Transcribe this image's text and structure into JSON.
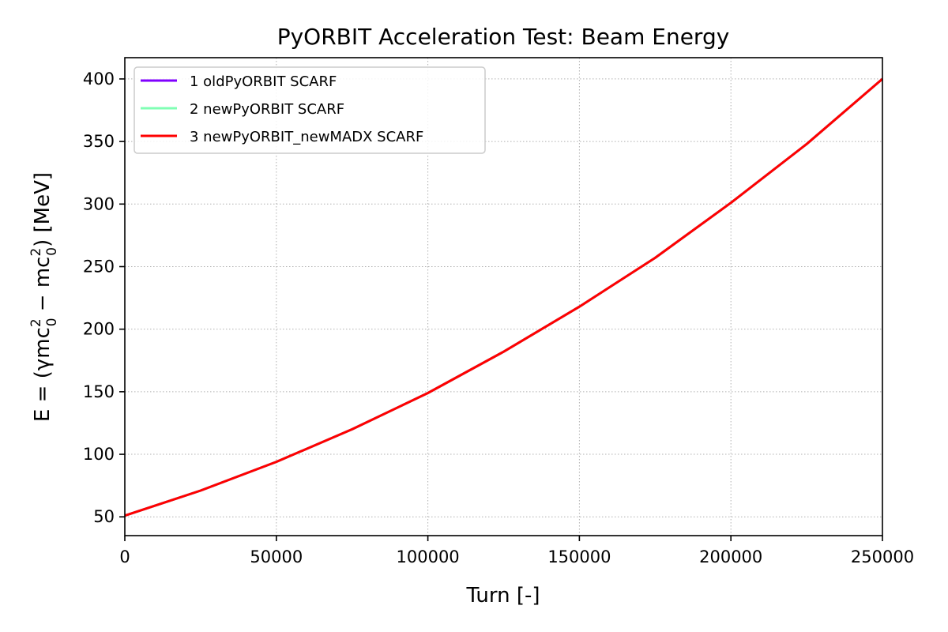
{
  "chart_data": {
    "type": "line",
    "title": "PyORBIT Acceleration Test: Beam Energy",
    "xlabel": "Turn [-]",
    "ylabel_parts": {
      "prefix": "E = (γmc",
      "sup1": "2",
      "sub1": "0",
      "middle": " − mc",
      "sup2": "2",
      "sub2": "0",
      "suffix": ") [MeV]"
    },
    "xlim": [
      0,
      250000
    ],
    "ylim": [
      35,
      417
    ],
    "x_ticks": [
      0,
      50000,
      100000,
      150000,
      200000,
      250000
    ],
    "x_tick_labels": [
      "0",
      "50000",
      "100000",
      "150000",
      "200000",
      "250000"
    ],
    "y_ticks": [
      50,
      100,
      150,
      200,
      250,
      300,
      350,
      400
    ],
    "y_tick_labels": [
      "50",
      "100",
      "150",
      "200",
      "250",
      "300",
      "350",
      "400"
    ],
    "grid": true,
    "legend_position": "top-left",
    "x": [
      0,
      25000,
      50000,
      75000,
      100000,
      125000,
      150000,
      175000,
      200000,
      225000,
      250000
    ],
    "series": [
      {
        "name": "1 oldPyORBIT SCARF",
        "color": "#8000ff",
        "values": [
          51,
          71,
          94,
          120,
          149,
          182,
          218,
          257,
          301,
          348,
          400
        ]
      },
      {
        "name": "2 newPyORBIT SCARF",
        "color": "#80ffb4",
        "values": [
          51,
          71,
          94,
          120,
          149,
          182,
          218,
          257,
          301,
          348,
          400
        ]
      },
      {
        "name": "3 newPyORBIT_newMADX SCARF",
        "color": "#ff0000",
        "values": [
          51,
          71,
          94,
          120,
          149,
          182,
          218,
          257,
          301,
          348,
          400
        ]
      }
    ]
  }
}
